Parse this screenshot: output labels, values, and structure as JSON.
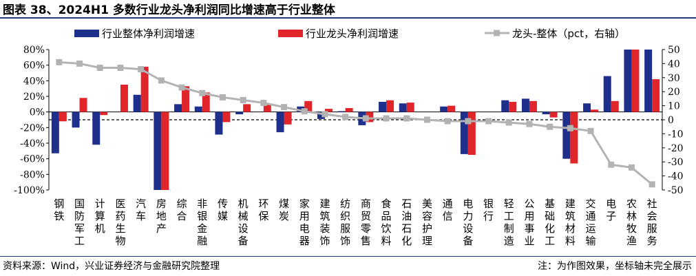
{
  "title": "图表 38、2024H1 多数行业龙头净利润同比增速高于行业整体",
  "source": "资料来源：Wind，兴业证券经济与金融研究院整理",
  "note": "注：为作图效果，坐标轴未完全展示",
  "colors": {
    "overall": "#1f2f8c",
    "leader": "#e0262b",
    "diff": "#b3b3b3",
    "title_rule": "#1f3a7a"
  },
  "chart_data": {
    "type": "bar",
    "categories": [
      "钢铁",
      "国防军工",
      "计算机",
      "医药生物",
      "汽车",
      "房地产",
      "综合",
      "非银金融",
      "传媒",
      "机械设备",
      "环保",
      "煤炭",
      "家用电器",
      "建筑装饰",
      "纺织服饰",
      "商贸零售",
      "食品饮料",
      "石油石化",
      "美容护理",
      "通信",
      "电力设备",
      "银行",
      "轻工制造",
      "公用事业",
      "基础化工",
      "建筑材料",
      "交通运输",
      "电子",
      "农林牧渔",
      "社会服务"
    ],
    "series": [
      {
        "name": "行业整体净利润增速",
        "kind": "bar",
        "axis": "left",
        "values": [
          -53,
          -20,
          -42,
          0,
          22,
          -100,
          10,
          7,
          -29,
          -3,
          0,
          -26,
          7,
          -9,
          1,
          -17,
          13,
          11,
          0,
          7,
          -54,
          0,
          15,
          17,
          -3,
          -60,
          11,
          46,
          80,
          80
        ]
      },
      {
        "name": "行业龙头净利润增速",
        "kind": "bar",
        "axis": "left",
        "values": [
          -12,
          18,
          -4,
          35,
          58,
          -100,
          33,
          25,
          -13,
          10,
          9,
          -16,
          14,
          4,
          5,
          -13,
          15,
          12,
          0,
          8,
          -55,
          0,
          13,
          14,
          -7,
          -66,
          3,
          14,
          80,
          42
        ]
      },
      {
        "name": "龙头-整体（pct，右轴）",
        "kind": "line",
        "axis": "right",
        "values": [
          41,
          40,
          37,
          37,
          36,
          28,
          23,
          19,
          16,
          14,
          12,
          9,
          6,
          4,
          2,
          1,
          1,
          1,
          0,
          -1,
          -1,
          -1,
          -2,
          -3,
          -5,
          -6,
          -8,
          -32,
          -34,
          -46
        ]
      }
    ],
    "ylim_left": [
      -100,
      80
    ],
    "yticks_left": [
      "80%",
      "60%",
      "40%",
      "20%",
      "0%",
      "-20%",
      "-40%",
      "-60%",
      "-80%",
      "-100%"
    ],
    "ylim_right": [
      -50,
      50
    ],
    "yticks_right": [
      "50",
      "40",
      "30",
      "20",
      "10",
      "0",
      "-10",
      "-20",
      "-30",
      "-40",
      "-50"
    ],
    "legend_position": "top",
    "grid": false,
    "reference_line": {
      "axis": "right",
      "value": 0,
      "style": "dashed"
    }
  }
}
